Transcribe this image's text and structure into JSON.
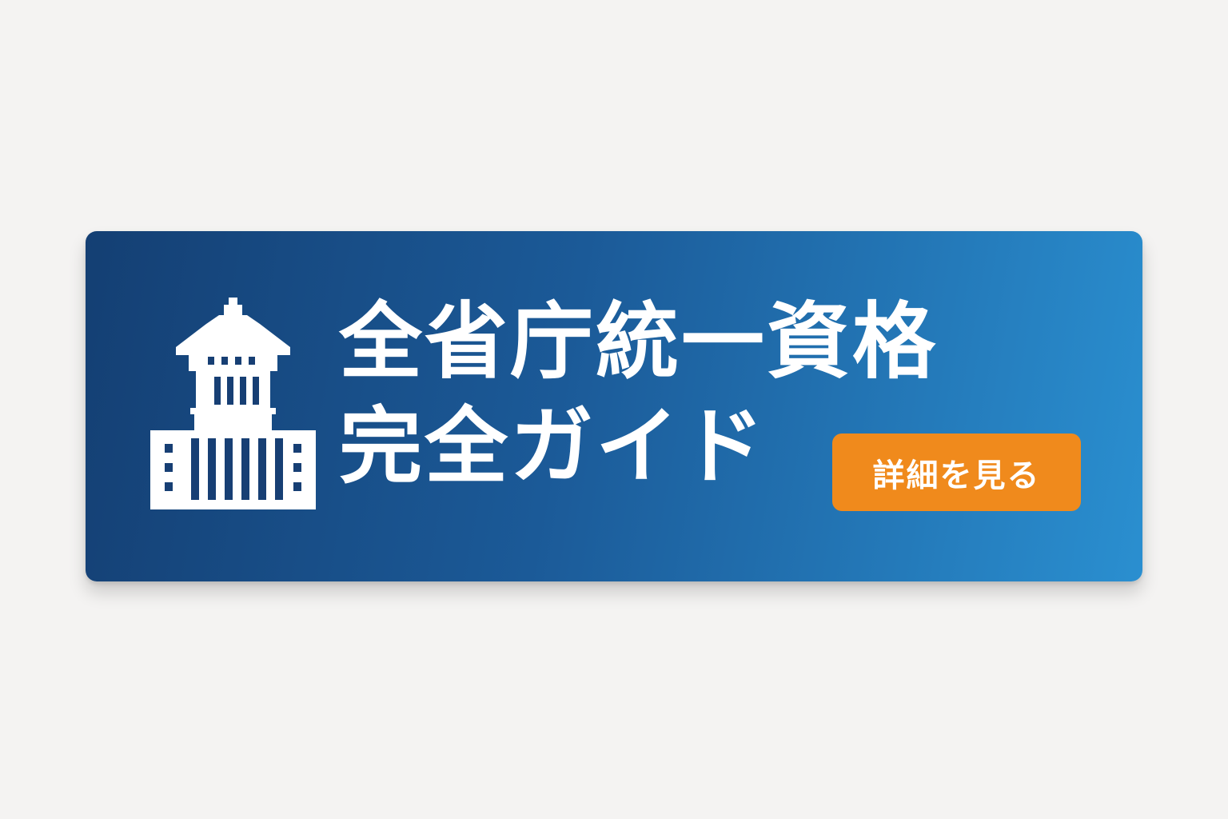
{
  "banner": {
    "icon": "government-building-icon",
    "title_line_1": "全省庁統一資格",
    "title_line_2": "完全ガイド",
    "button_label": "詳細を見る",
    "colors": {
      "background": "#f4f3f2",
      "banner_gradient_start": "#143f73",
      "banner_gradient_end": "#2a8fd0",
      "button": "#f08a1c",
      "text": "#ffffff"
    }
  }
}
